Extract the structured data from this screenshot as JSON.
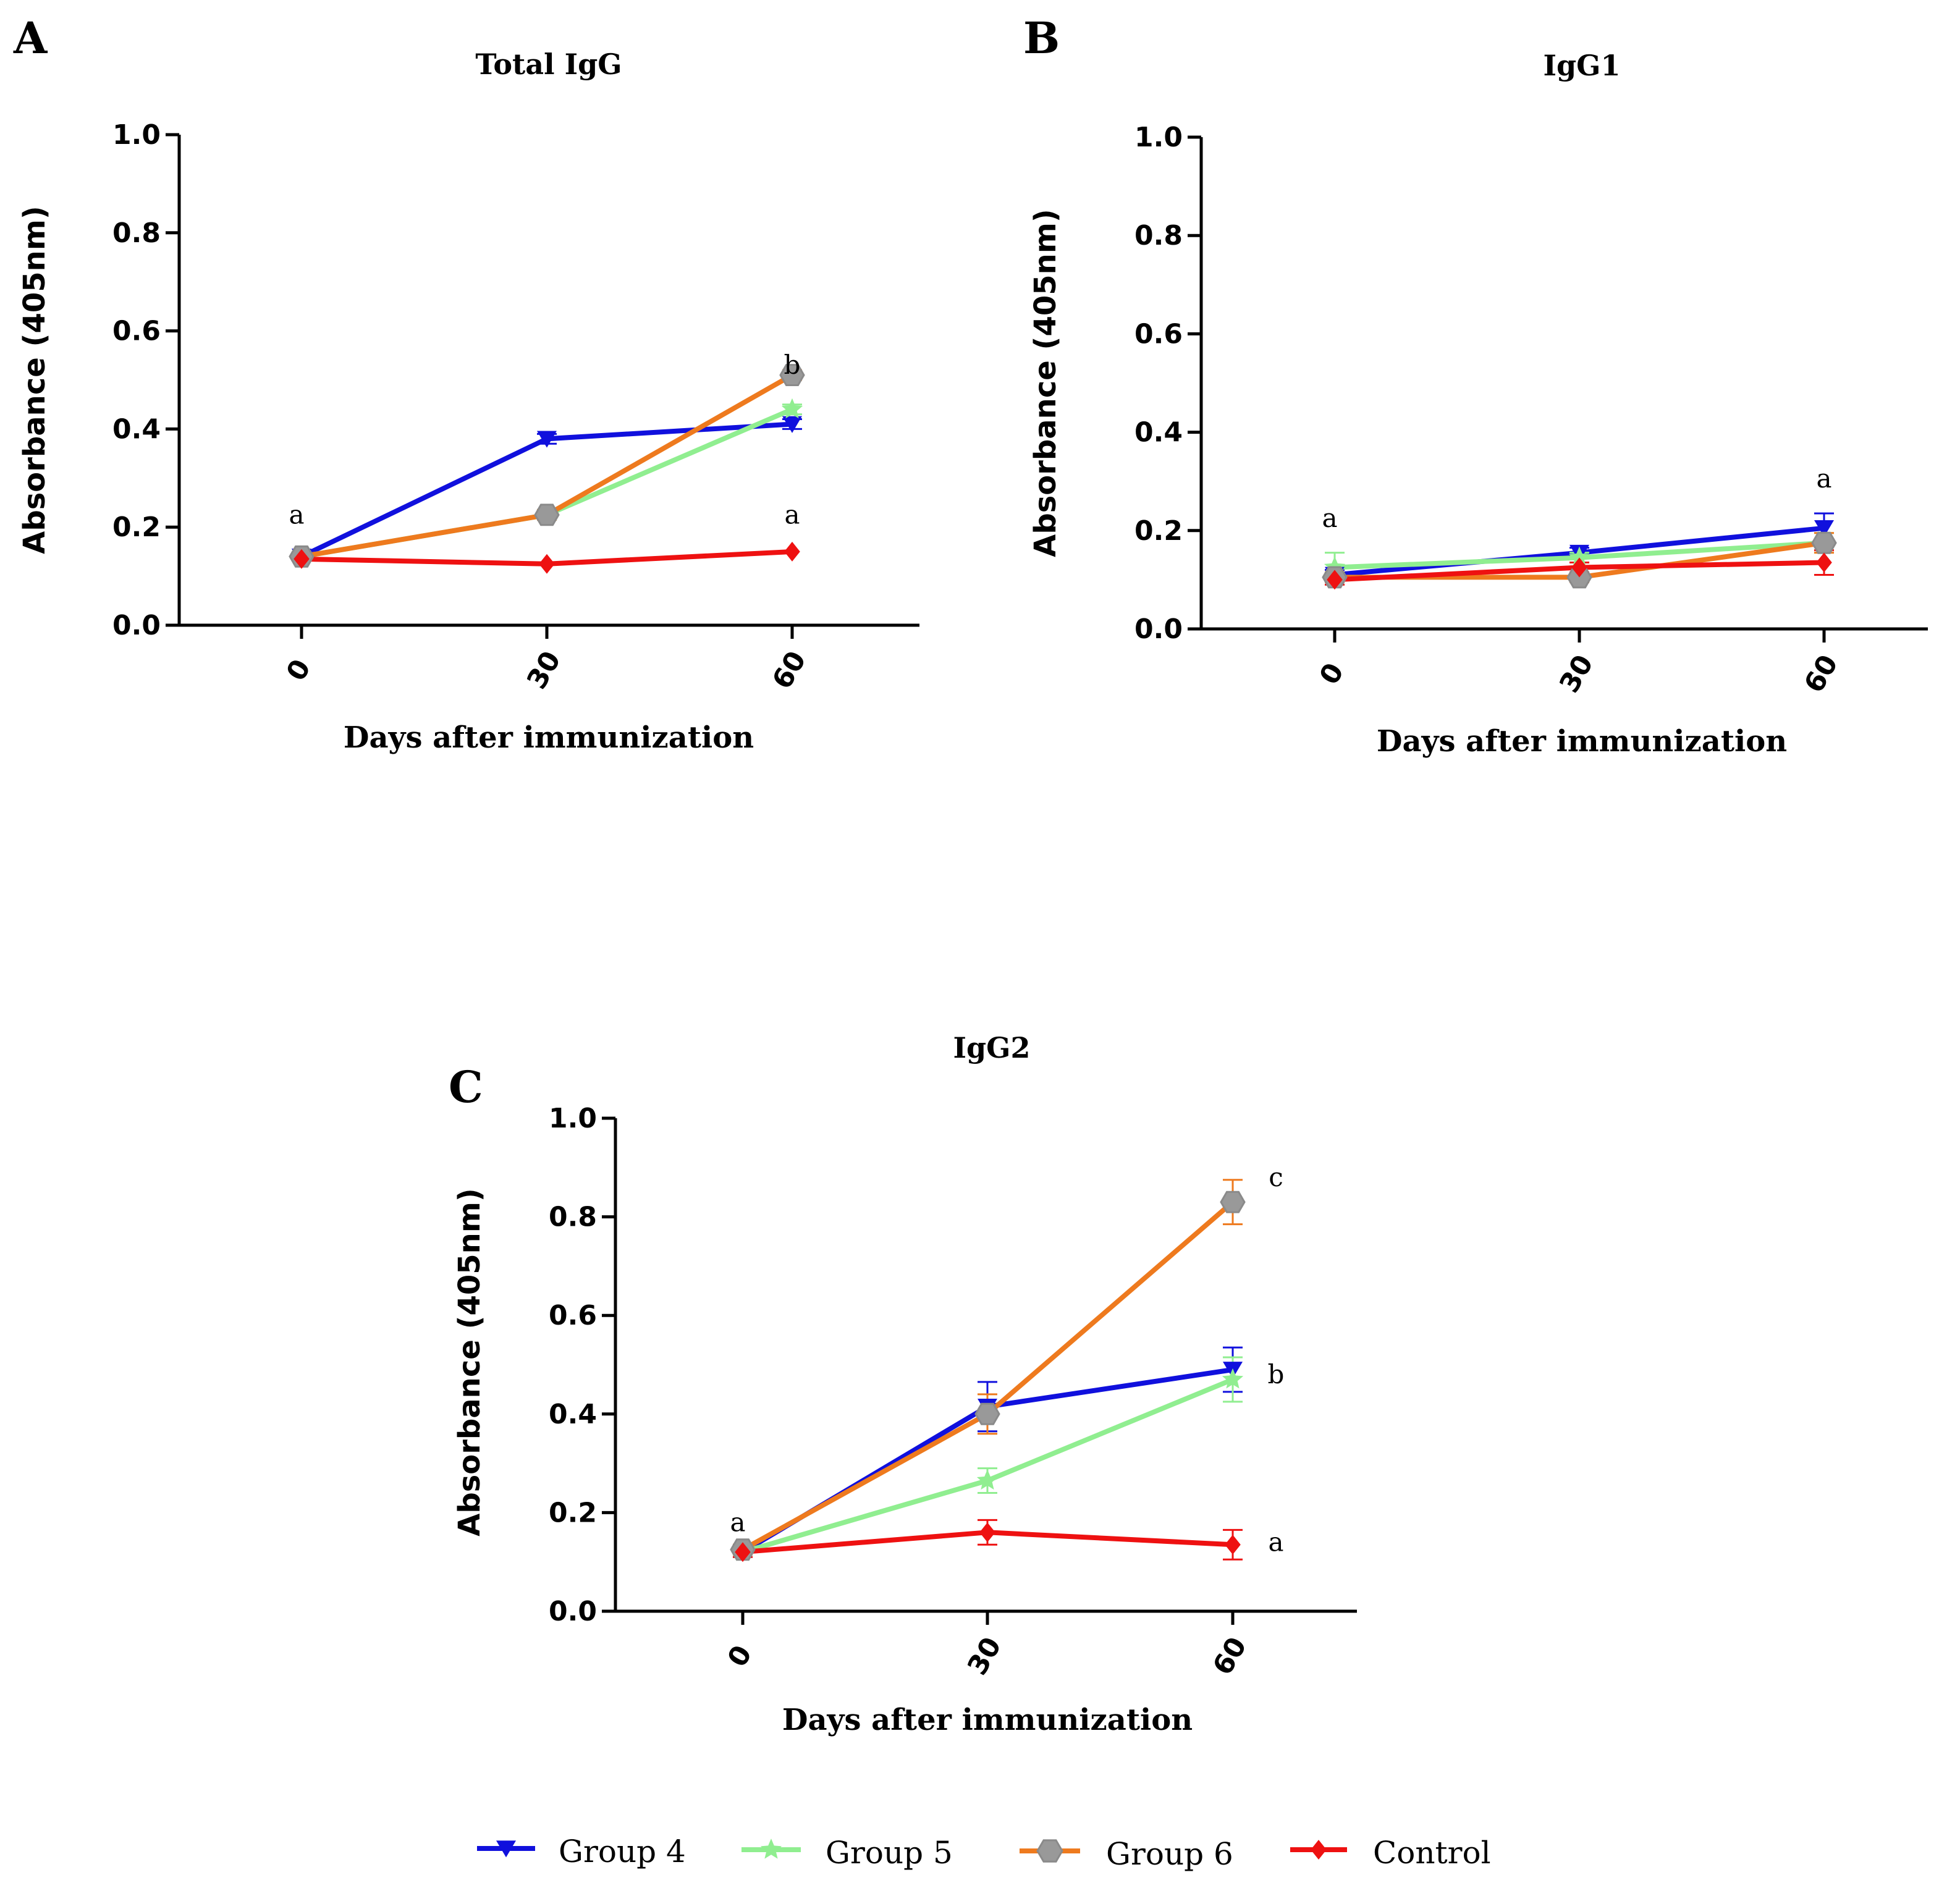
{
  "series_styles": [
    {
      "name": "Group 4",
      "color": "#1010dd",
      "marker": "triangle-down"
    },
    {
      "name": "Group 5",
      "color": "#90ee90",
      "marker": "star"
    },
    {
      "name": "Group 6",
      "color": "#ee7a1e",
      "marker": "hexagon",
      "marker_color": "#999999"
    },
    {
      "name": "Control",
      "color": "#ee1111",
      "marker": "diamond"
    }
  ],
  "legend": {
    "items": [
      "Group 4",
      "Group 5",
      "Group 6",
      "Control"
    ]
  },
  "chart_data": [
    {
      "panel": "A",
      "type": "line",
      "title": "Total IgG",
      "xlabel": "Days after immunization",
      "ylabel": "Absorbance (405nm)",
      "x": [
        0,
        30,
        60
      ],
      "x_tick_labels": [
        "0",
        "30",
        "60"
      ],
      "ylim": [
        0,
        1.0
      ],
      "y_ticks": [
        "0.0",
        "0.2",
        "0.4",
        "0.6",
        "0.8",
        "1.0"
      ],
      "series": [
        {
          "name": "Group 4",
          "values": [
            0.14,
            0.38,
            0.41
          ],
          "errors": [
            0.005,
            0.01,
            0.01
          ]
        },
        {
          "name": "Group 5",
          "values": [
            0.14,
            0.225,
            0.44
          ],
          "errors": [
            0.005,
            0.01,
            0.01
          ]
        },
        {
          "name": "Group 6",
          "values": [
            0.14,
            0.225,
            0.51
          ],
          "errors": [
            0.005,
            0.01,
            0.01
          ]
        },
        {
          "name": "Control",
          "values": [
            0.135,
            0.125,
            0.15
          ],
          "errors": [
            0.005,
            0.005,
            0.005
          ]
        }
      ],
      "annotations": [
        {
          "text": "a",
          "x": 0,
          "y": 0.225
        },
        {
          "text": "a",
          "x": 60,
          "y": 0.225
        },
        {
          "text": "b",
          "x": 60,
          "y": 0.53
        }
      ]
    },
    {
      "panel": "B",
      "type": "line",
      "title": "IgG1",
      "xlabel": "Days after immunization",
      "ylabel": "Absorbance (405nm)",
      "x": [
        0,
        30,
        60
      ],
      "x_tick_labels": [
        "0",
        "30",
        "60"
      ],
      "ylim": [
        0,
        1.0
      ],
      "y_ticks": [
        "0.0",
        "0.2",
        "0.4",
        "0.6",
        "0.8",
        "1.0"
      ],
      "series": [
        {
          "name": "Group 4",
          "values": [
            0.11,
            0.155,
            0.205
          ],
          "errors": [
            0.01,
            0.01,
            0.03
          ]
        },
        {
          "name": "Group 5",
          "values": [
            0.125,
            0.145,
            0.175
          ],
          "errors": [
            0.03,
            0.01,
            0.02
          ]
        },
        {
          "name": "Group 6",
          "values": [
            0.105,
            0.105,
            0.175
          ],
          "errors": [
            0.01,
            0.01,
            0.02
          ]
        },
        {
          "name": "Control",
          "values": [
            0.1,
            0.125,
            0.135
          ],
          "errors": [
            0.01,
            0.01,
            0.025
          ]
        }
      ],
      "annotations": [
        {
          "text": "a",
          "x": 0,
          "y": 0.225
        },
        {
          "text": "a",
          "x": 60,
          "y": 0.305
        }
      ]
    },
    {
      "panel": "C",
      "type": "line",
      "title": "IgG2",
      "xlabel": "Days after immunization",
      "ylabel": "Absorbance  (405nm)",
      "x": [
        0,
        30,
        60
      ],
      "x_tick_labels": [
        "0",
        "30",
        "60"
      ],
      "ylim": [
        0,
        1.0
      ],
      "y_ticks": [
        "0.0",
        "0.2",
        "0.4",
        "0.6",
        "0.8",
        "1.0"
      ],
      "series": [
        {
          "name": "Group 4",
          "values": [
            0.12,
            0.415,
            0.49
          ],
          "errors": [
            0.01,
            0.05,
            0.045
          ]
        },
        {
          "name": "Group 5",
          "values": [
            0.12,
            0.265,
            0.47
          ],
          "errors": [
            0.01,
            0.025,
            0.045
          ]
        },
        {
          "name": "Group 6",
          "values": [
            0.125,
            0.4,
            0.83
          ],
          "errors": [
            0.01,
            0.04,
            0.045
          ]
        },
        {
          "name": "Control",
          "values": [
            0.12,
            0.16,
            0.135
          ],
          "errors": [
            0.01,
            0.025,
            0.03
          ]
        }
      ],
      "annotations": [
        {
          "text": "a",
          "x": 0,
          "y": 0.18
        },
        {
          "text": "c",
          "x": 60,
          "y": 0.88
        },
        {
          "text": "b",
          "x": 60,
          "y": 0.48
        },
        {
          "text": "a",
          "x": 60,
          "y": 0.14
        }
      ]
    }
  ]
}
